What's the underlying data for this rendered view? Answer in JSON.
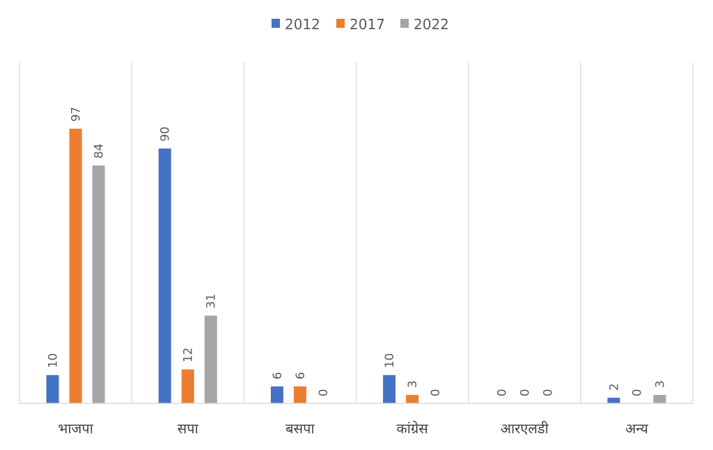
{
  "chart_data": {
    "type": "bar",
    "categories": [
      "भाजपा",
      "सपा",
      "बसपा",
      "कांग्रेस",
      "आरएलडी",
      "अन्य"
    ],
    "series": [
      {
        "name": "2012",
        "values": [
          10,
          90,
          6,
          10,
          0,
          2
        ],
        "color": "#4472C4"
      },
      {
        "name": "2017",
        "values": [
          97,
          12,
          6,
          3,
          0,
          0
        ],
        "color": "#ED7D31"
      },
      {
        "name": "2022",
        "values": [
          84,
          31,
          0,
          0,
          0,
          3
        ],
        "color": "#A5A5A5"
      }
    ],
    "ylim": [
      0,
      120
    ],
    "legend": "top-center",
    "grid": "vertical category separators",
    "data_labels": "rotated, above bars"
  }
}
